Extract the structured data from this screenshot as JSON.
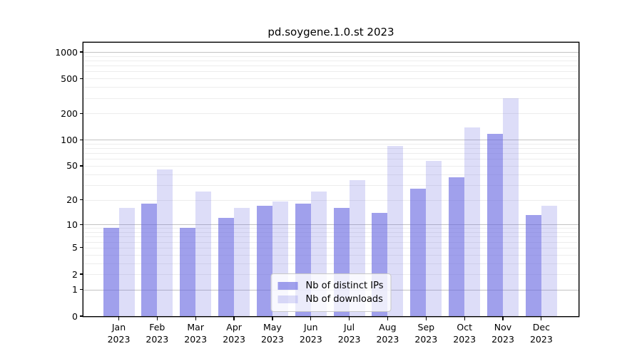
{
  "title": "pd.soygene.1.0.st 2023",
  "chart_data": {
    "type": "bar",
    "title": "pd.soygene.1.0.st 2023",
    "categories": [
      "Jan 2023",
      "Feb 2023",
      "Mar 2023",
      "Apr 2023",
      "May 2023",
      "Jun 2023",
      "Jul 2023",
      "Aug 2023",
      "Sep 2023",
      "Oct 2023",
      "Nov 2023",
      "Dec 2023"
    ],
    "series": [
      {
        "name": "Nb of distinct IPs",
        "color": "rgba(102,102,224,0.62)",
        "values": [
          9,
          18,
          9,
          12,
          17,
          18,
          16,
          14,
          27,
          37,
          117,
          13
        ]
      },
      {
        "name": "Nb of downloads",
        "color": "rgba(102,102,224,0.22)",
        "values": [
          16,
          45,
          25,
          16,
          19,
          25,
          34,
          84,
          57,
          137,
          300,
          17
        ]
      }
    ],
    "xlabel": "",
    "ylabel": "",
    "y_axis": {
      "scale": "log10(value+1)",
      "tick_values": [
        0,
        1,
        2,
        5,
        10,
        20,
        50,
        100,
        200,
        500,
        1000
      ],
      "tick_labels": [
        "0",
        "1",
        "2",
        "5",
        "10",
        "20",
        "50",
        "100",
        "200",
        "500",
        "1000"
      ],
      "ylim": [
        0,
        1100
      ],
      "minor_gridlines": [
        2,
        3,
        4,
        5,
        6,
        7,
        8,
        9,
        20,
        30,
        40,
        50,
        60,
        70,
        80,
        90,
        200,
        300,
        400,
        500,
        600,
        700,
        800,
        900
      ],
      "major_gridlines": [
        1,
        10,
        100,
        1000
      ]
    },
    "grid": true,
    "legend_position": "inside-bottom-center",
    "colors": {
      "bar_base": "#6666e0",
      "grid_major": "#c3c3c3",
      "grid_minor": "#ededed",
      "axis": "#000000",
      "legend_border": "#c9c9c9"
    }
  }
}
